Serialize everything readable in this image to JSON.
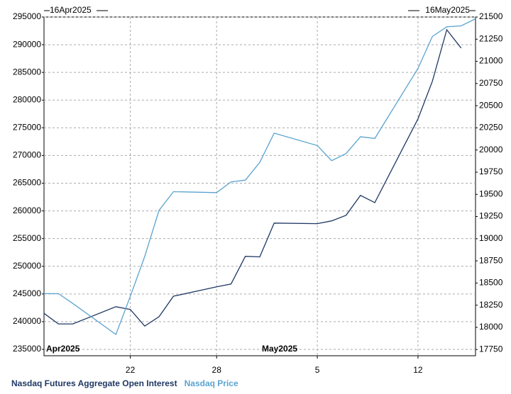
{
  "chart_data": {
    "type": "line",
    "range_start": "16Apr2025",
    "range_end": "16May2025",
    "x": [
      "2025-04-16",
      "2025-04-17",
      "2025-04-18",
      "2025-04-21",
      "2025-04-22",
      "2025-04-23",
      "2025-04-24",
      "2025-04-25",
      "2025-04-28",
      "2025-04-29",
      "2025-04-30",
      "2025-05-01",
      "2025-05-02",
      "2025-05-05",
      "2025-05-06",
      "2025-05-07",
      "2025-05-08",
      "2025-05-09",
      "2025-05-12",
      "2025-05-13",
      "2025-05-14",
      "2025-05-15",
      "2025-05-16"
    ],
    "series": [
      {
        "name": "Nasdaq Futures Aggregate Open Interest",
        "color": "#1f3864",
        "axis": "y",
        "values": [
          241500,
          239600,
          239600,
          242700,
          242200,
          239200,
          240900,
          244600,
          246300,
          246800,
          251800,
          251700,
          257800,
          257700,
          258200,
          259200,
          262800,
          261500,
          276600,
          283400,
          292700,
          289400,
          null
        ]
      },
      {
        "name": "Nasdaq Price",
        "color": "#5ba3cf",
        "axis": "y2",
        "values": [
          18380,
          18380,
          18270,
          17920,
          18350,
          18800,
          19320,
          19530,
          19520,
          19640,
          19660,
          19860,
          20190,
          20050,
          19880,
          19960,
          20150,
          20130,
          20920,
          21280,
          21390,
          21400,
          21480
        ]
      }
    ],
    "xlim": [
      "2025-04-16",
      "2025-05-16"
    ],
    "xticks": [
      {
        "value": "2025-04-22",
        "label": "22"
      },
      {
        "value": "2025-04-28",
        "label": "28"
      },
      {
        "value": "2025-05-05",
        "label": "5"
      },
      {
        "value": "2025-05-12",
        "label": "12"
      }
    ],
    "month_labels": [
      {
        "value": "2025-04-16",
        "label": "Apr2025"
      },
      {
        "value": "2025-05-01",
        "label": "May2025"
      }
    ],
    "ylim": [
      233850,
      295000
    ],
    "yticks": [
      235000,
      240000,
      245000,
      250000,
      255000,
      260000,
      265000,
      270000,
      275000,
      280000,
      285000,
      290000,
      295000
    ],
    "y2lim": [
      17680,
      21500
    ],
    "y2ticks": [
      17750,
      18000,
      18250,
      18500,
      18750,
      19000,
      19250,
      19500,
      19750,
      20000,
      20250,
      20500,
      20750,
      21000,
      21250,
      21500
    ],
    "grid": true
  }
}
